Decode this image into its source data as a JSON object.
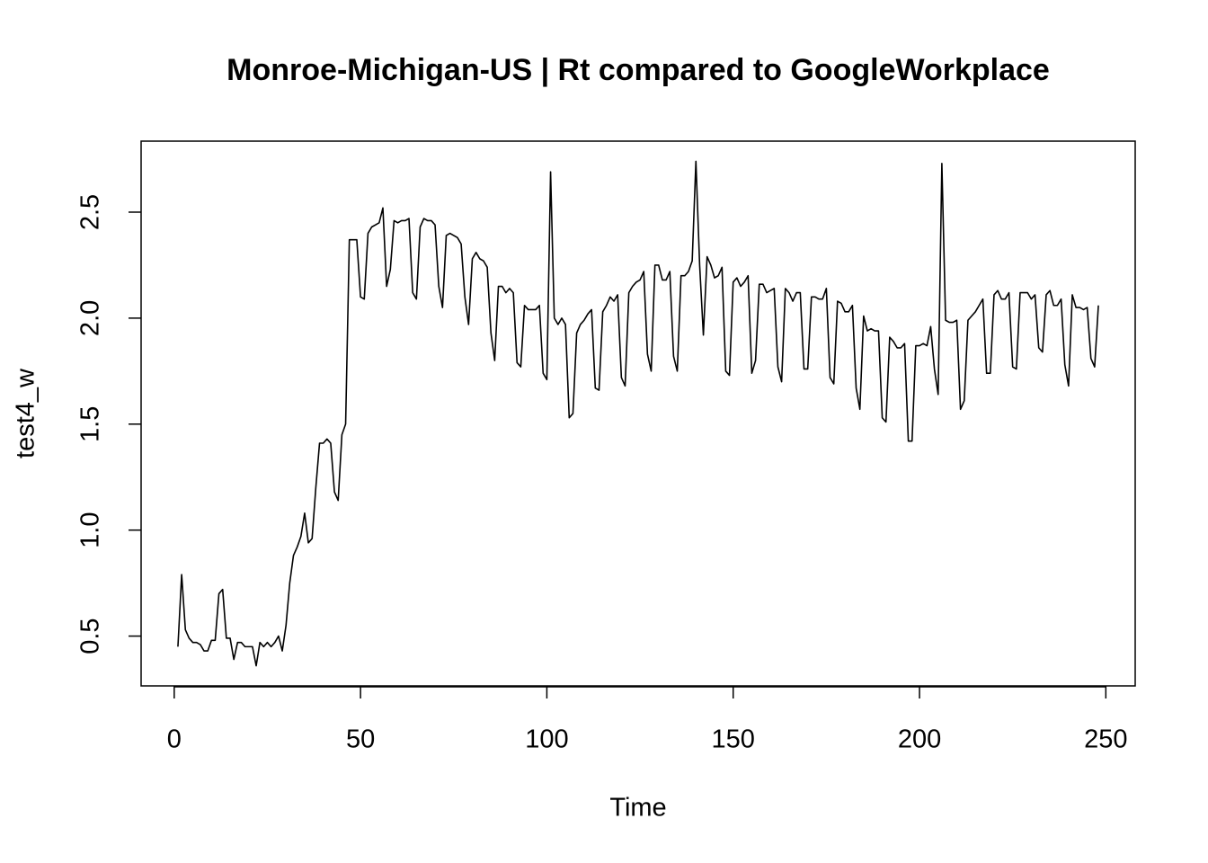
{
  "chart_data": {
    "type": "line",
    "title": "Monroe-Michigan-US | Rt compared to GoogleWorkplace",
    "x_label": "Time",
    "y_label": "test4_w",
    "x": [
      1,
      2,
      3,
      4,
      5,
      6,
      7,
      8,
      9,
      10,
      11,
      12,
      13,
      14,
      15,
      16,
      17,
      18,
      19,
      20,
      21,
      22,
      23,
      24,
      25,
      26,
      27,
      28,
      29,
      30,
      31,
      32,
      33,
      34,
      35,
      36,
      37,
      38,
      39,
      40,
      41,
      42,
      43,
      44,
      45,
      46,
      47,
      48,
      49,
      50,
      51,
      52,
      53,
      54,
      55,
      56,
      57,
      58,
      59,
      60,
      61,
      62,
      63,
      64,
      65,
      66,
      67,
      68,
      69,
      70,
      71,
      72,
      73,
      74,
      75,
      76,
      77,
      78,
      79,
      80,
      81,
      82,
      83,
      84,
      85,
      86,
      87,
      88,
      89,
      90,
      91,
      92,
      93,
      94,
      95,
      96,
      97,
      98,
      99,
      100,
      101,
      102,
      103,
      104,
      105,
      106,
      107,
      108,
      109,
      110,
      111,
      112,
      113,
      114,
      115,
      116,
      117,
      118,
      119,
      120,
      121,
      122,
      123,
      124,
      125,
      126,
      127,
      128,
      129,
      130,
      131,
      132,
      133,
      134,
      135,
      136,
      137,
      138,
      139,
      140,
      141,
      142,
      143,
      144,
      145,
      146,
      147,
      148,
      149,
      150,
      151,
      152,
      153,
      154,
      155,
      156,
      157,
      158,
      159,
      160,
      161,
      162,
      163,
      164,
      165,
      166,
      167,
      168,
      169,
      170,
      171,
      172,
      173,
      174,
      175,
      176,
      177,
      178,
      179,
      180,
      181,
      182,
      183,
      184,
      185,
      186,
      187,
      188,
      189,
      190,
      191,
      192,
      193,
      194,
      195,
      196,
      197,
      198,
      199,
      200,
      201,
      202,
      203,
      204,
      205,
      206,
      207,
      208,
      209,
      210,
      211,
      212,
      213,
      214,
      215,
      216,
      217,
      218,
      219,
      220,
      221,
      222,
      223,
      224,
      225,
      226,
      227,
      228,
      229,
      230,
      231,
      232,
      233,
      234,
      235,
      236,
      237,
      238,
      239,
      240,
      241,
      242,
      243,
      244,
      245,
      246,
      247,
      248
    ],
    "series": [
      {
        "name": "test4_w",
        "color": "#000000",
        "values": [
          0.45,
          0.79,
          0.53,
          0.49,
          0.47,
          0.47,
          0.46,
          0.43,
          0.43,
          0.48,
          0.48,
          0.7,
          0.72,
          0.49,
          0.49,
          0.39,
          0.47,
          0.47,
          0.45,
          0.45,
          0.45,
          0.36,
          0.47,
          0.45,
          0.47,
          0.45,
          0.47,
          0.5,
          0.43,
          0.55,
          0.75,
          0.88,
          0.92,
          0.97,
          1.08,
          0.94,
          0.96,
          1.2,
          1.41,
          1.41,
          1.43,
          1.41,
          1.18,
          1.14,
          1.45,
          1.5,
          2.37,
          2.37,
          2.37,
          2.1,
          2.09,
          2.4,
          2.43,
          2.44,
          2.45,
          2.52,
          2.15,
          2.23,
          2.46,
          2.45,
          2.46,
          2.46,
          2.47,
          2.12,
          2.09,
          2.43,
          2.47,
          2.46,
          2.46,
          2.44,
          2.15,
          2.05,
          2.39,
          2.4,
          2.39,
          2.38,
          2.35,
          2.1,
          1.97,
          2.28,
          2.31,
          2.28,
          2.27,
          2.24,
          1.93,
          1.8,
          2.15,
          2.15,
          2.12,
          2.14,
          2.12,
          1.79,
          1.77,
          2.06,
          2.04,
          2.04,
          2.04,
          2.06,
          1.74,
          1.71,
          2.69,
          2.0,
          1.97,
          2.0,
          1.97,
          1.53,
          1.55,
          1.93,
          1.97,
          1.99,
          2.02,
          2.04,
          1.67,
          1.66,
          2.03,
          2.06,
          2.1,
          2.08,
          2.11,
          1.72,
          1.68,
          2.12,
          2.15,
          2.17,
          2.18,
          2.22,
          1.83,
          1.75,
          2.25,
          2.25,
          2.18,
          2.18,
          2.22,
          1.82,
          1.75,
          2.2,
          2.2,
          2.22,
          2.27,
          2.74,
          2.25,
          1.92,
          2.29,
          2.25,
          2.19,
          2.2,
          2.24,
          1.75,
          1.73,
          2.17,
          2.19,
          2.15,
          2.17,
          2.2,
          1.74,
          1.8,
          2.16,
          2.16,
          2.12,
          2.13,
          2.14,
          1.77,
          1.7,
          2.14,
          2.12,
          2.08,
          2.12,
          2.12,
          1.76,
          1.76,
          2.1,
          2.1,
          2.09,
          2.09,
          2.14,
          1.72,
          1.69,
          2.08,
          2.07,
          2.03,
          2.03,
          2.06,
          1.67,
          1.57,
          2.01,
          1.94,
          1.95,
          1.94,
          1.94,
          1.53,
          1.51,
          1.91,
          1.89,
          1.86,
          1.86,
          1.88,
          1.42,
          1.42,
          1.87,
          1.87,
          1.88,
          1.87,
          1.96,
          1.76,
          1.64,
          2.73,
          1.99,
          1.98,
          1.98,
          1.99,
          1.57,
          1.61,
          1.99,
          2.01,
          2.03,
          2.06,
          2.09,
          1.74,
          1.74,
          2.11,
          2.13,
          2.09,
          2.09,
          2.12,
          1.77,
          1.76,
          2.12,
          2.12,
          2.12,
          2.09,
          2.11,
          1.86,
          1.84,
          2.11,
          2.13,
          2.06,
          2.06,
          2.09,
          1.78,
          1.68,
          2.11,
          2.05,
          2.05,
          2.04,
          2.05,
          1.81,
          1.77,
          2.06
        ]
      }
    ],
    "xlim": [
      -8.88,
      257.88
    ],
    "ylim": [
      0.265,
      2.835
    ],
    "xticks": [
      0,
      50,
      100,
      150,
      200,
      250
    ],
    "yticks": [
      0.5,
      {
        "value": 1,
        "label": "1.0"
      },
      1.5,
      {
        "value": 2,
        "label": "2.0"
      },
      2.5
    ]
  }
}
